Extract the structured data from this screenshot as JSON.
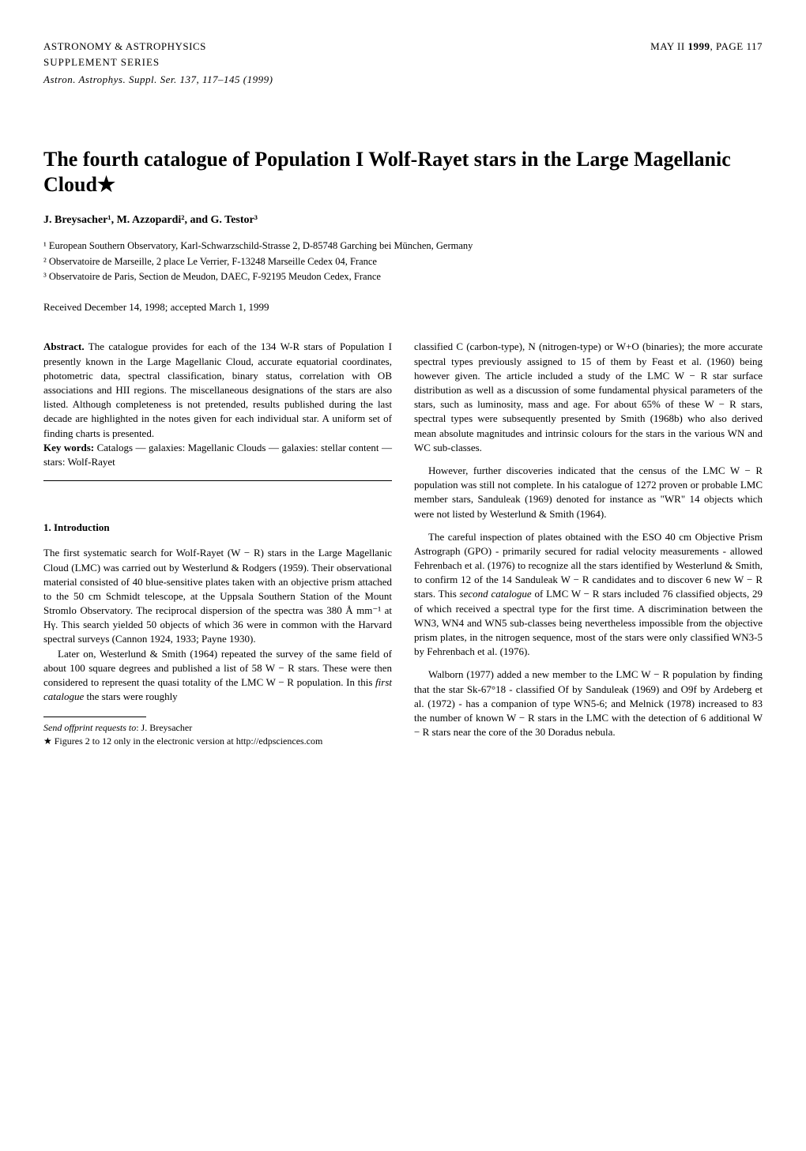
{
  "header": {
    "journal": "ASTRONOMY & ASTROPHYSICS",
    "supplement": "SUPPLEMENT SERIES",
    "issue": "MAY II 1999, PAGE 117",
    "volume_info": "Astron. Astrophys. Suppl. Ser. 137, 117–145 (1999)"
  },
  "title": "The fourth catalogue of Population I Wolf-Rayet stars in the Large Magellanic Cloud★",
  "authors": "J. Breysacher¹, M. Azzopardi², and G. Testor³",
  "affiliations": {
    "a1": "¹ European Southern Observatory, Karl-Schwarzschild-Strasse 2, D-85748 Garching bei München, Germany",
    "a2": "² Observatoire de Marseille, 2 place Le Verrier, F-13248 Marseille Cedex 04, France",
    "a3": "³ Observatoire de Paris, Section de Meudon, DAEC, F-92195 Meudon Cedex, France"
  },
  "received": "Received December 14, 1998; accepted March 1, 1999",
  "abstract": {
    "label": "Abstract.",
    "text": " The catalogue provides for each of the 134 W-R stars of Population I presently known in the Large Magellanic Cloud, accurate equatorial coordinates, photometric data, spectral classification, binary status, correlation with OB associations and HII regions. The miscellaneous designations of the stars are also listed. Although completeness is not pretended, results published during the last decade are highlighted in the notes given for each individual star. A uniform set of finding charts is presented."
  },
  "keywords": {
    "label": "Key words:",
    "text": " Catalogs — galaxies: Magellanic Clouds — galaxies: stellar content — stars: Wolf-Rayet"
  },
  "section1": {
    "heading": "1. Introduction",
    "p1": "The first systematic search for Wolf-Rayet (W − R) stars in the Large Magellanic Cloud (LMC) was carried out by Westerlund & Rodgers (1959). Their observational material consisted of 40 blue-sensitive plates taken with an objective prism attached to the 50 cm Schmidt telescope, at the Uppsala Southern Station of the Mount Stromlo Observatory. The reciprocal dispersion of the spectra was 380 Å mm⁻¹ at Hγ. This search yielded 50 objects of which 36 were in common with the Harvard spectral surveys (Cannon 1924, 1933; Payne 1930).",
    "p2": "Later on, Westerlund & Smith (1964) repeated the survey of the same field of about 100 square degrees and published a list of 58 W − R stars. These were then considered to represent the quasi totality of the LMC W − R population. In this first catalogue the stars were roughly"
  },
  "footnotes": {
    "f1_label": "Send offprint requests to",
    "f1_text": ": J. Breysacher",
    "f2": "★ Figures 2 to 12 only in the electronic version at http://edpsciences.com"
  },
  "col2": {
    "p1": "classified C (carbon-type), N (nitrogen-type) or W+O (binaries); the more accurate spectral types previously assigned to 15 of them by Feast et al. (1960) being however given. The article included a study of the LMC W − R star surface distribution as well as a discussion of some fundamental physical parameters of the stars, such as luminosity, mass and age. For about 65% of these W − R stars, spectral types were subsequently presented by Smith (1968b) who also derived mean absolute magnitudes and intrinsic colours for the stars in the various WN and WC sub-classes.",
    "p2": "However, further discoveries indicated that the census of the LMC W − R population was still not complete. In his catalogue of 1272 proven or probable LMC member stars, Sanduleak (1969) denoted for instance as \"WR\" 14 objects which were not listed by Westerlund & Smith (1964).",
    "p3": "The careful inspection of plates obtained with the ESO 40 cm Objective Prism Astrograph (GPO) - primarily secured for radial velocity measurements - allowed Fehrenbach et al. (1976) to recognize all the stars identified by Westerlund & Smith, to confirm 12 of the 14 Sanduleak W − R candidates and to discover 6 new W − R stars. This second catalogue of LMC W − R stars included 76 classified objects, 29 of which received a spectral type for the first time. A discrimination between the WN3, WN4 and WN5 sub-classes being nevertheless impossible from the objective prism plates, in the nitrogen sequence, most of the stars were only classified WN3-5 by Fehrenbach et al. (1976).",
    "p4": "Walborn (1977) added a new member to the LMC W − R population by finding that the star Sk-67°18 - classified Of by Sanduleak (1969) and O9f by Ardeberg et al. (1972) - has a companion of type WN5-6; and Melnick (1978) increased to 83 the number of known W − R stars in the LMC with the detection of 6 additional W − R stars near the core of the 30 Doradus nebula."
  }
}
